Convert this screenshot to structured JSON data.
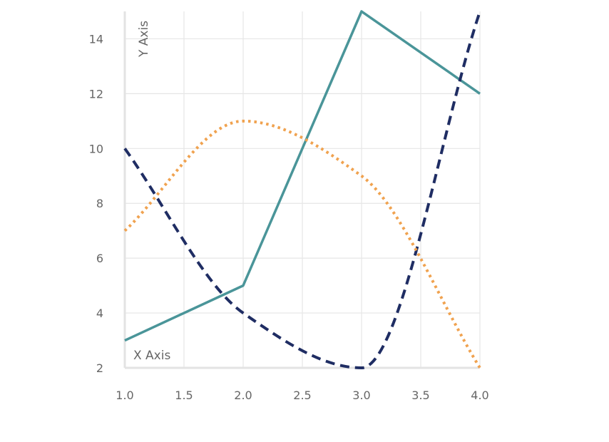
{
  "chart_data": {
    "type": "line",
    "xlabel": "X Axis",
    "ylabel": "Y Axis",
    "xlim": [
      1.0,
      4.0
    ],
    "ylim": [
      2,
      15
    ],
    "x_ticks": [
      "1.0",
      "1.5",
      "2.0",
      "2.5",
      "3.0",
      "3.5",
      "4.0"
    ],
    "y_ticks": [
      "2",
      "4",
      "6",
      "8",
      "10",
      "12",
      "14"
    ],
    "grid": true,
    "series": [
      {
        "x": [
          1,
          2,
          3,
          4
        ],
        "values": [
          3,
          5,
          15,
          12
        ],
        "color": "#4a9599",
        "style": "solid",
        "curve": "linear"
      },
      {
        "x": [
          1,
          2,
          3,
          4
        ],
        "values": [
          10,
          4,
          2,
          15
        ],
        "color": "#1f2d63",
        "style": "dashed",
        "curve": "smooth"
      },
      {
        "x": [
          1,
          2,
          3,
          4
        ],
        "values": [
          7,
          11,
          9,
          2
        ],
        "color": "#f0a24f",
        "style": "dotted",
        "curve": "smooth"
      }
    ]
  }
}
